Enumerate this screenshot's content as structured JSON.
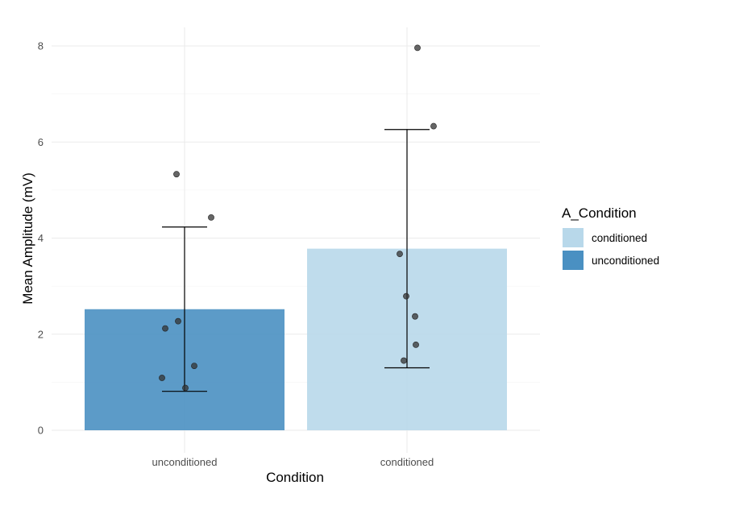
{
  "chart_data": {
    "type": "bar",
    "xlabel": "Condition",
    "ylabel": "Mean Amplitude (mV)",
    "ylim": [
      -0.5,
      8.2
    ],
    "yticks": [
      0,
      2,
      4,
      6,
      8
    ],
    "grid": true,
    "categories": [
      "unconditioned",
      "conditioned"
    ],
    "bars": [
      {
        "category": "unconditioned",
        "group": "unconditioned",
        "mean": 2.52,
        "err_low": 0.81,
        "err_high": 4.23,
        "color": "#4a90c2",
        "points": [
          5.33,
          4.43,
          2.27,
          2.12,
          1.34,
          1.09,
          0.88
        ]
      },
      {
        "category": "conditioned",
        "group": "conditioned",
        "mean": 3.78,
        "err_low": 1.3,
        "err_high": 6.26,
        "color": "#b8d8ea",
        "points": [
          7.96,
          6.33,
          3.67,
          2.79,
          2.37,
          1.78,
          1.45
        ]
      }
    ],
    "legend": {
      "title": "A_Condition",
      "position": "right",
      "items": [
        {
          "label": "conditioned",
          "color": "#b8d8ea"
        },
        {
          "label": "unconditioned",
          "color": "#4a90c2"
        }
      ]
    },
    "point_color": "#333333"
  }
}
